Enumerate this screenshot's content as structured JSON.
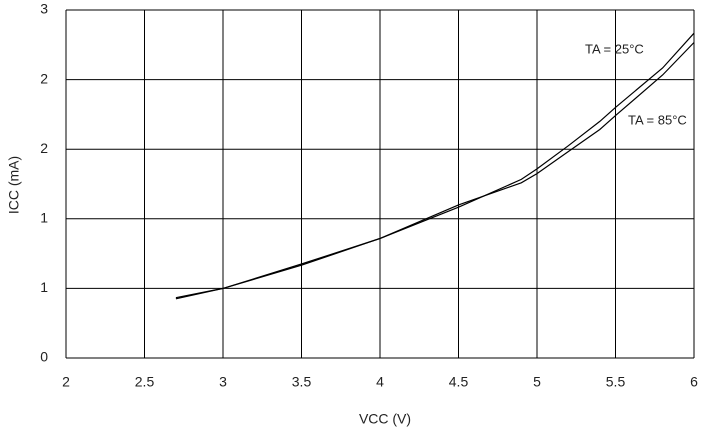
{
  "chart_data": {
    "type": "line",
    "x_label": "VCC (V)",
    "y_label": "ICC (mA)",
    "x": [
      2.7,
      3.0,
      3.5,
      4.0,
      4.5,
      4.9,
      5.0,
      5.2,
      5.4,
      5.5,
      5.8,
      6.0
    ],
    "series": [
      {
        "name": "TA = 25°C",
        "color": "#000000",
        "values": [
          0.52,
          0.6,
          0.81,
          1.03,
          1.3,
          1.54,
          1.63,
          1.83,
          2.04,
          2.16,
          2.5,
          2.8
        ]
      },
      {
        "name": "TA = 85°C",
        "color": "#000000",
        "values": [
          0.51,
          0.6,
          0.8,
          1.03,
          1.32,
          1.51,
          1.59,
          1.78,
          1.97,
          2.09,
          2.44,
          2.72
        ]
      }
    ],
    "xlim": [
      2,
      6
    ],
    "xticks": [
      2,
      2.5,
      3,
      3.5,
      4,
      4.5,
      5,
      5.5,
      6
    ],
    "ylim": [
      0,
      3
    ],
    "yticks": [
      0,
      {
        "value": 0.6,
        "label": "1"
      },
      {
        "value": 1.2,
        "label": "1"
      },
      {
        "value": 1.8,
        "label": "2"
      },
      {
        "value": 2.4,
        "label": "2"
      },
      3
    ],
    "grid": true
  }
}
